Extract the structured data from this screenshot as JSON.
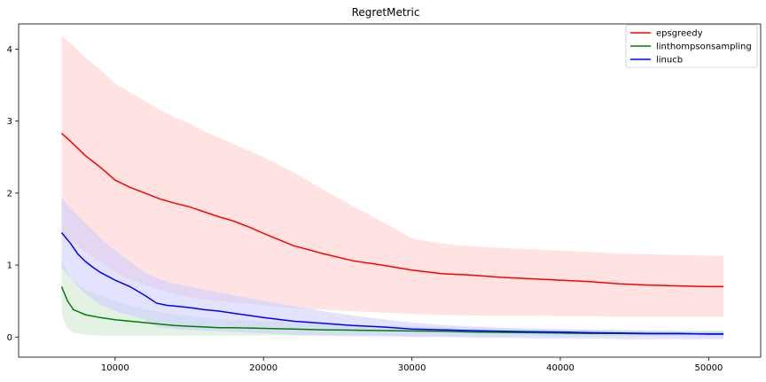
{
  "chart_data": {
    "type": "line",
    "title": "RegretMetric",
    "xlabel": "",
    "ylabel": "",
    "xlim": [
      3500,
      53500
    ],
    "ylim": [
      -0.28,
      4.35
    ],
    "xticks": [
      10000,
      20000,
      30000,
      40000,
      50000
    ],
    "yticks": [
      0,
      1,
      2,
      3,
      4
    ],
    "grid": false,
    "legend_position": "top-right",
    "series": [
      {
        "name": "epsgreedy",
        "color": "#ff0000",
        "band_color": "#ffcccc",
        "x": [
          6400,
          7000,
          8000,
          9000,
          10000,
          11000,
          12000,
          13000,
          14000,
          15000,
          16000,
          17000,
          18000,
          19000,
          20000,
          22000,
          24000,
          26000,
          28000,
          30000,
          32000,
          34000,
          36000,
          38000,
          40000,
          42000,
          44000,
          46000,
          48000,
          50000,
          51000
        ],
        "y": [
          2.83,
          2.72,
          2.52,
          2.36,
          2.18,
          2.08,
          2.0,
          1.92,
          1.86,
          1.81,
          1.74,
          1.67,
          1.61,
          1.53,
          1.44,
          1.27,
          1.16,
          1.06,
          1.0,
          0.93,
          0.88,
          0.86,
          0.83,
          0.81,
          0.79,
          0.77,
          0.74,
          0.72,
          0.71,
          0.7,
          0.7
        ],
        "upper": [
          4.18,
          4.08,
          3.88,
          3.72,
          3.52,
          3.4,
          3.28,
          3.16,
          3.05,
          2.97,
          2.86,
          2.77,
          2.68,
          2.59,
          2.5,
          2.29,
          2.05,
          1.82,
          1.6,
          1.37,
          1.3,
          1.26,
          1.24,
          1.22,
          1.2,
          1.18,
          1.16,
          1.15,
          1.14,
          1.13,
          1.13
        ],
        "lower": [
          1.45,
          1.35,
          1.18,
          1.05,
          0.9,
          0.8,
          0.72,
          0.66,
          0.6,
          0.55,
          0.52,
          0.5,
          0.48,
          0.46,
          0.44,
          0.4,
          0.38,
          0.36,
          0.34,
          0.32,
          0.31,
          0.3,
          0.3,
          0.3,
          0.29,
          0.29,
          0.28,
          0.28,
          0.28,
          0.28,
          0.28
        ]
      },
      {
        "name": "linthompsonsampling",
        "color": "#008000",
        "band_color": "#cce8cc",
        "x": [
          6400,
          6800,
          7200,
          8000,
          9000,
          10000,
          11000,
          12000,
          13000,
          14000,
          15000,
          16000,
          17000,
          18000,
          20000,
          22000,
          24000,
          26000,
          28000,
          30000,
          32000,
          34000,
          36000,
          38000,
          40000,
          42000,
          44000,
          46000,
          48000,
          50000,
          51000
        ],
        "y": [
          0.7,
          0.5,
          0.38,
          0.31,
          0.27,
          0.24,
          0.22,
          0.2,
          0.18,
          0.16,
          0.15,
          0.14,
          0.13,
          0.13,
          0.12,
          0.11,
          0.1,
          0.095,
          0.09,
          0.085,
          0.08,
          0.07,
          0.065,
          0.06,
          0.055,
          0.05,
          0.05,
          0.045,
          0.045,
          0.045,
          0.045
        ],
        "upper": [
          1.05,
          0.9,
          0.78,
          0.66,
          0.58,
          0.5,
          0.44,
          0.39,
          0.35,
          0.32,
          0.29,
          0.27,
          0.25,
          0.24,
          0.22,
          0.2,
          0.18,
          0.17,
          0.16,
          0.15,
          0.14,
          0.13,
          0.12,
          0.11,
          0.1,
          0.1,
          0.1,
          0.09,
          0.09,
          0.09,
          0.09
        ],
        "lower": [
          0.3,
          0.12,
          0.06,
          0.03,
          0.02,
          0.02,
          0.02,
          0.02,
          0.02,
          0.02,
          0.02,
          0.02,
          0.02,
          0.02,
          0.02,
          0.02,
          0.02,
          0.02,
          0.02,
          0.01,
          0.01,
          0.01,
          0.01,
          0.01,
          0.01,
          0.01,
          0.01,
          0.01,
          0.01,
          0.01,
          0.01
        ]
      },
      {
        "name": "linucb",
        "color": "#0000ff",
        "band_color": "#ccccff",
        "x": [
          6400,
          7000,
          7500,
          8000,
          8500,
          9000,
          10000,
          11000,
          12000,
          12800,
          13500,
          14000,
          15000,
          16000,
          17000,
          18000,
          19000,
          20000,
          22000,
          24000,
          26000,
          28000,
          30000,
          32000,
          34000,
          36000,
          38000,
          40000,
          42000,
          44000,
          46000,
          48000,
          50000,
          51000
        ],
        "y": [
          1.45,
          1.3,
          1.15,
          1.05,
          0.97,
          0.9,
          0.79,
          0.7,
          0.58,
          0.47,
          0.44,
          0.43,
          0.41,
          0.38,
          0.36,
          0.33,
          0.3,
          0.27,
          0.22,
          0.19,
          0.16,
          0.14,
          0.11,
          0.1,
          0.09,
          0.08,
          0.075,
          0.07,
          0.06,
          0.055,
          0.05,
          0.05,
          0.04,
          0.04
        ],
        "upper": [
          1.93,
          1.8,
          1.68,
          1.58,
          1.48,
          1.38,
          1.2,
          1.05,
          0.9,
          0.82,
          0.77,
          0.74,
          0.7,
          0.66,
          0.62,
          0.58,
          0.54,
          0.5,
          0.43,
          0.36,
          0.3,
          0.25,
          0.2,
          0.17,
          0.15,
          0.13,
          0.12,
          0.11,
          0.1,
          0.09,
          0.09,
          0.08,
          0.08,
          0.08
        ],
        "lower": [
          0.95,
          0.82,
          0.7,
          0.6,
          0.52,
          0.45,
          0.36,
          0.3,
          0.24,
          0.14,
          0.12,
          0.11,
          0.1,
          0.09,
          0.08,
          0.07,
          0.06,
          0.05,
          0.03,
          0.02,
          0.01,
          0.01,
          0.0,
          0.0,
          -0.01,
          -0.01,
          -0.02,
          -0.02,
          -0.02,
          -0.03,
          -0.03,
          -0.03,
          -0.03,
          -0.03
        ]
      }
    ]
  }
}
